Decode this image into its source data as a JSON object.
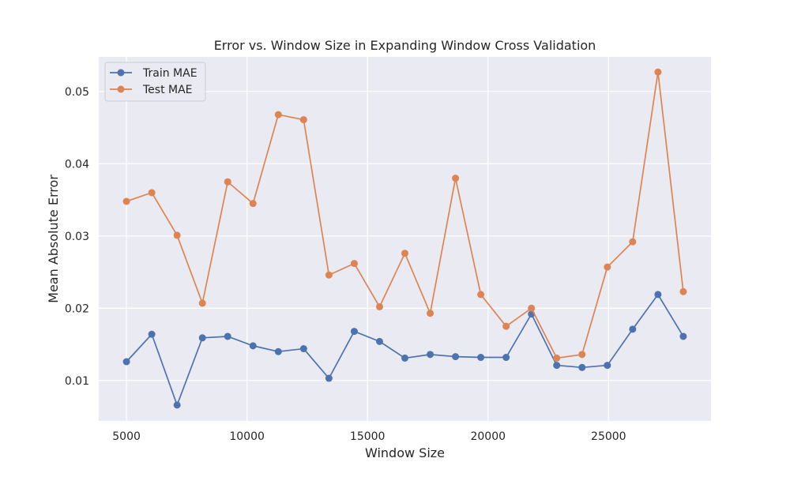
{
  "chart_data": {
    "type": "line",
    "title": "Error vs. Window Size in Expanding Window Cross Validation",
    "xlabel": "Window Size",
    "ylabel": "Mean Absolute Error",
    "xlim": [
      3850,
      29250
    ],
    "ylim": [
      0.0044,
      0.0548
    ],
    "xticks": [
      5000,
      10000,
      15000,
      20000,
      25000
    ],
    "yticks": [
      0.01,
      0.02,
      0.03,
      0.04,
      0.05
    ],
    "ytick_labels": [
      "0.01",
      "0.02",
      "0.03",
      "0.04",
      "0.05"
    ],
    "grid": true,
    "legend_position": "top-left",
    "x": [
      5000,
      6050,
      7100,
      8150,
      9200,
      10250,
      11300,
      12350,
      13400,
      14450,
      15500,
      16550,
      17600,
      18650,
      19700,
      20750,
      21800,
      22850,
      23900,
      24950,
      26000,
      27050,
      28100
    ],
    "series": [
      {
        "name": "Train MAE",
        "color": "#4c72b0",
        "values": [
          0.0126,
          0.0164,
          0.0066,
          0.0159,
          0.0161,
          0.0148,
          0.014,
          0.0144,
          0.0103,
          0.0168,
          0.0154,
          0.0131,
          0.0136,
          0.0133,
          0.0132,
          0.0132,
          0.0192,
          0.0121,
          0.0118,
          0.0121,
          0.0171,
          0.0219,
          0.0161
        ]
      },
      {
        "name": "Test MAE",
        "color": "#dd8452",
        "values": [
          0.0348,
          0.036,
          0.0301,
          0.0207,
          0.0375,
          0.0345,
          0.0468,
          0.0461,
          0.0246,
          0.0262,
          0.0202,
          0.0276,
          0.0193,
          0.038,
          0.0219,
          0.0175,
          0.02,
          0.0131,
          0.0136,
          0.0257,
          0.0292,
          0.0527,
          0.0223
        ]
      }
    ]
  }
}
